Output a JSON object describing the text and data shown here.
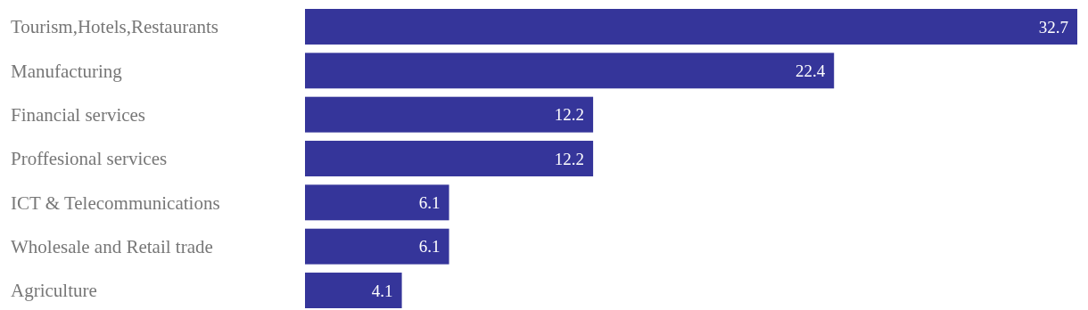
{
  "chart_data": {
    "type": "bar",
    "orientation": "horizontal",
    "categories": [
      "Tourism,Hotels,Restaurants",
      "Manufacturing",
      "Financial services",
      "Proffesional services",
      "ICT & Telecommunications",
      "Wholesale and Retail trade",
      "Agriculture"
    ],
    "values": [
      32.7,
      22.4,
      12.2,
      12.2,
      6.1,
      6.1,
      4.1
    ],
    "color": "#35359a",
    "data_labels": true
  }
}
